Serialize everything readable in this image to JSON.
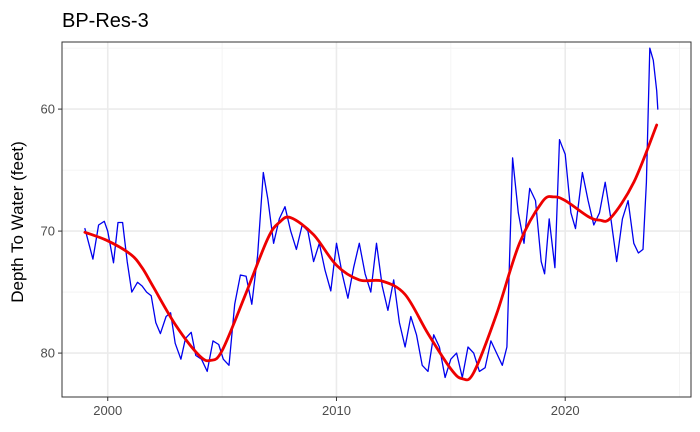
{
  "chart_data": {
    "type": "line",
    "title": "BP-Res-3",
    "xlabel": "",
    "ylabel": "Depth To Water (feet)",
    "xlim": [
      1998.0,
      2025.5
    ],
    "ylim": [
      54.5,
      83.6
    ],
    "y_reversed": true,
    "x_ticks": [
      2000,
      2010,
      2020
    ],
    "x_tick_labels": [
      "2000",
      "2010",
      "2020"
    ],
    "y_ticks": [
      60,
      70,
      80
    ],
    "y_tick_labels": [
      "60",
      "70",
      "80"
    ],
    "grid": true,
    "legend": "none",
    "series": [
      {
        "role": "observed depth",
        "color": "#0000ee",
        "x": [
          1999.0,
          1999.35,
          1999.6,
          1999.85,
          2000.0,
          2000.25,
          2000.45,
          2000.65,
          2000.85,
          2001.05,
          2001.3,
          2001.5,
          2001.7,
          2001.9,
          2002.1,
          2002.3,
          2002.55,
          2002.75,
          2002.95,
          2003.2,
          2003.4,
          2003.65,
          2003.85,
          2004.1,
          2004.35,
          2004.6,
          2004.85,
          2005.05,
          2005.3,
          2005.55,
          2005.8,
          2006.05,
          2006.3,
          2006.55,
          2006.8,
          2007.0,
          2007.25,
          2007.5,
          2007.75,
          2008.0,
          2008.25,
          2008.5,
          2008.75,
          2009.0,
          2009.25,
          2009.5,
          2009.75,
          2010.0,
          2010.25,
          2010.5,
          2010.75,
          2011.0,
          2011.25,
          2011.5,
          2011.75,
          2012.0,
          2012.25,
          2012.5,
          2012.75,
          2013.0,
          2013.25,
          2013.5,
          2013.75,
          2014.0,
          2014.25,
          2014.5,
          2014.75,
          2015.0,
          2015.25,
          2015.5,
          2015.75,
          2016.0,
          2016.25,
          2016.5,
          2016.75,
          2017.0,
          2017.25,
          2017.45,
          2017.7,
          2017.95,
          2018.2,
          2018.45,
          2018.7,
          2018.95,
          2019.1,
          2019.3,
          2019.55,
          2019.75,
          2019.85,
          2020.0,
          2020.25,
          2020.45,
          2020.75,
          2021.0,
          2021.25,
          2021.5,
          2021.75,
          2022.0,
          2022.25,
          2022.5,
          2022.75,
          2023.0,
          2023.2,
          2023.4,
          2023.55,
          2023.7,
          2023.85,
          2024.0,
          2024.05
        ],
        "y": [
          69.8,
          72.3,
          69.5,
          69.2,
          70.0,
          72.6,
          69.3,
          69.3,
          72.5,
          75.0,
          74.2,
          74.5,
          75.0,
          75.3,
          77.5,
          78.4,
          77.0,
          76.7,
          79.2,
          80.5,
          78.8,
          78.3,
          80.2,
          80.5,
          81.5,
          79.0,
          79.3,
          80.5,
          81.0,
          76.0,
          73.6,
          73.7,
          76.0,
          72.0,
          65.2,
          67.4,
          71.0,
          69.0,
          68.0,
          70.0,
          71.5,
          69.5,
          70.0,
          72.5,
          71.0,
          73.2,
          74.9,
          71.0,
          73.5,
          75.5,
          73.0,
          71.0,
          73.5,
          75.0,
          71.0,
          74.5,
          76.5,
          74.0,
          77.5,
          79.5,
          77.0,
          78.5,
          81.0,
          81.5,
          78.5,
          79.5,
          82.0,
          80.5,
          80.0,
          82.0,
          79.5,
          80.0,
          81.5,
          81.2,
          79.0,
          80.0,
          81.0,
          79.5,
          64.0,
          68.5,
          71.0,
          66.5,
          67.5,
          72.5,
          73.5,
          69.0,
          73.0,
          62.5,
          63.0,
          63.7,
          68.5,
          69.8,
          65.2,
          67.5,
          69.5,
          68.5,
          66.0,
          69.0,
          72.5,
          69.0,
          67.5,
          71.0,
          71.8,
          71.5,
          66.0,
          55.0,
          56.0,
          58.5,
          60.0
        ]
      },
      {
        "role": "smoothed trend",
        "color": "#ee0000",
        "x": [
          1999.0,
          2000.0,
          2001.0,
          2001.5,
          2002.0,
          2003.0,
          2004.0,
          2004.5,
          2005.0,
          2006.0,
          2007.0,
          2007.5,
          2008.0,
          2009.0,
          2010.0,
          2011.0,
          2012.0,
          2013.0,
          2014.0,
          2015.0,
          2015.5,
          2016.0,
          2017.0,
          2018.0,
          2019.0,
          2019.5,
          2020.0,
          2021.0,
          2021.5,
          2022.0,
          2023.0,
          2024.0
        ],
        "y": [
          70.1,
          70.8,
          71.9,
          73.0,
          74.6,
          77.8,
          80.2,
          80.6,
          79.8,
          75.3,
          70.6,
          69.3,
          68.9,
          70.3,
          72.8,
          74.0,
          74.1,
          75.2,
          78.4,
          81.3,
          82.1,
          81.6,
          76.8,
          71.0,
          67.6,
          67.2,
          67.5,
          68.8,
          69.1,
          68.9,
          66.0,
          61.3
        ]
      }
    ]
  }
}
